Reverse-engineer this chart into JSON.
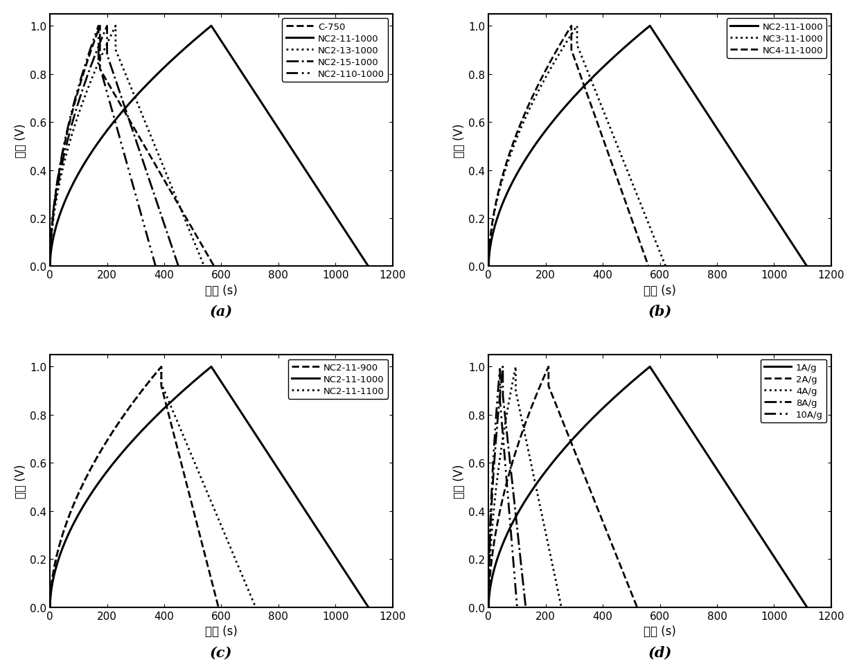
{
  "xlabel": "时间 (s)",
  "ylabel": "电压 (V)",
  "xlim": [
    0,
    1200
  ],
  "ylim": [
    0.0,
    1.05
  ],
  "yticks": [
    0.0,
    0.2,
    0.4,
    0.6,
    0.8,
    1.0
  ],
  "xticks": [
    0,
    200,
    400,
    600,
    800,
    1000,
    1200
  ],
  "subplot_labels": [
    "(a)",
    "(b)",
    "(c)",
    "(d)"
  ],
  "panel_a": {
    "curves": [
      {
        "label": "C-750",
        "ls": "dashed",
        "charge_t": 175,
        "discharge_t": 400,
        "ir_drop": 0.18,
        "lw": 2.0
      },
      {
        "label": "NC2-11-1000",
        "ls": "solid",
        "charge_t": 565,
        "discharge_t": 550,
        "ir_drop": 0.0,
        "lw": 2.2
      },
      {
        "label": "NC2-13-1000",
        "ls": "dotted",
        "charge_t": 230,
        "discharge_t": 310,
        "ir_drop": 0.1,
        "lw": 2.0
      },
      {
        "label": "NC2-15-1000",
        "ls": "dashdot",
        "charge_t": 200,
        "discharge_t": 250,
        "ir_drop": 0.12,
        "lw": 2.0
      },
      {
        "label": "NC2-110-1000",
        "ls": "dashdotdot",
        "charge_t": 170,
        "discharge_t": 200,
        "ir_drop": 0.15,
        "lw": 2.0
      }
    ]
  },
  "panel_b": {
    "curves": [
      {
        "label": "NC2-11-1000",
        "ls": "solid",
        "charge_t": 565,
        "discharge_t": 550,
        "ir_drop": 0.0,
        "lw": 2.2
      },
      {
        "label": "NC3-11-1000",
        "ls": "dotted",
        "charge_t": 310,
        "discharge_t": 310,
        "ir_drop": 0.08,
        "lw": 2.0
      },
      {
        "label": "NC4-11-1000",
        "ls": "dashed",
        "charge_t": 290,
        "discharge_t": 270,
        "ir_drop": 0.1,
        "lw": 2.0
      }
    ]
  },
  "panel_c": {
    "curves": [
      {
        "label": "NC2-11-900",
        "ls": "dashed",
        "charge_t": 390,
        "discharge_t": 200,
        "ir_drop": 0.08,
        "lw": 2.0
      },
      {
        "label": "NC2-11-1000",
        "ls": "solid",
        "charge_t": 565,
        "discharge_t": 550,
        "ir_drop": 0.0,
        "lw": 2.2
      },
      {
        "label": "NC2-11-1100",
        "ls": "dotted",
        "charge_t": 390,
        "discharge_t": 330,
        "ir_drop": 0.07,
        "lw": 2.0
      }
    ]
  },
  "panel_d": {
    "curves": [
      {
        "label": "1A/g",
        "ls": "solid",
        "charge_t": 565,
        "discharge_t": 550,
        "ir_drop": 0.0,
        "lw": 2.2
      },
      {
        "label": "2A/g",
        "ls": "dashed",
        "charge_t": 210,
        "discharge_t": 310,
        "ir_drop": 0.08,
        "lw": 2.0
      },
      {
        "label": "4A/g",
        "ls": "dotted",
        "charge_t": 95,
        "discharge_t": 160,
        "ir_drop": 0.1,
        "lw": 2.0
      },
      {
        "label": "8A/g",
        "ls": "dashdot",
        "charge_t": 50,
        "discharge_t": 80,
        "ir_drop": 0.12,
        "lw": 2.0
      },
      {
        "label": "10A/g",
        "ls": "dashdotdot",
        "charge_t": 40,
        "discharge_t": 60,
        "ir_drop": 0.14,
        "lw": 2.0
      }
    ]
  }
}
